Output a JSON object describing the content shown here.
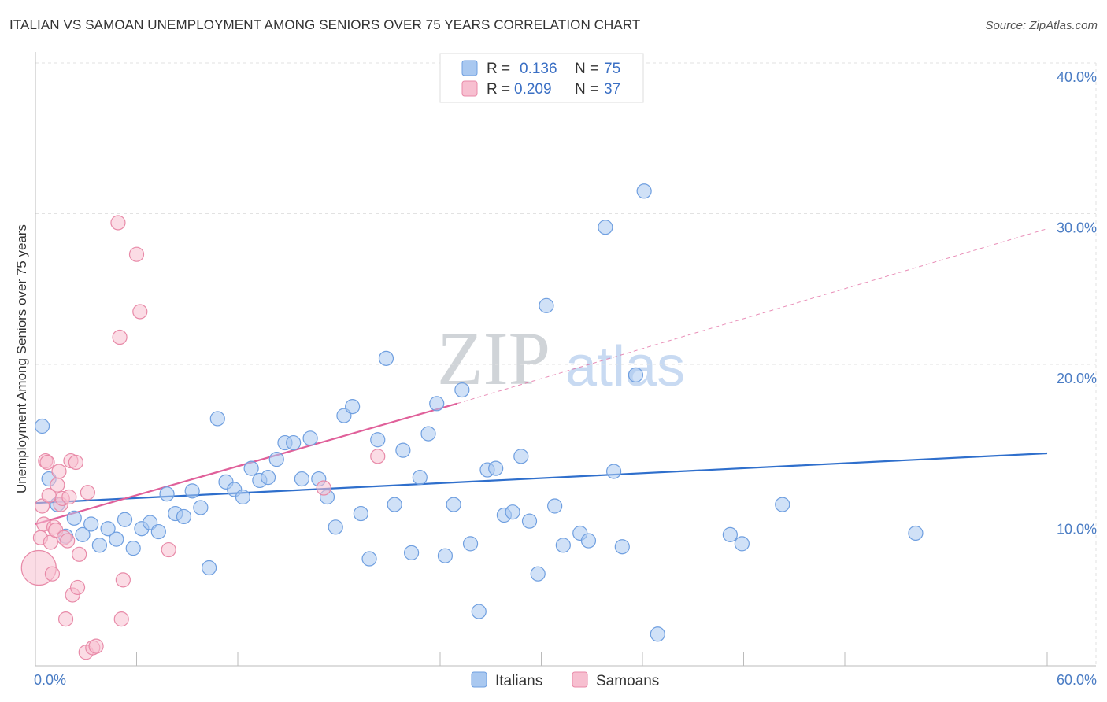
{
  "title": "ITALIAN VS SAMOAN UNEMPLOYMENT AMONG SENIORS OVER 75 YEARS CORRELATION CHART",
  "source": "Source: ZipAtlas.com",
  "watermark": {
    "zip": "ZIP",
    "atlas": "atlas"
  },
  "chart_data": {
    "type": "scatter",
    "xlabel": "",
    "ylabel": "Unemployment Among Seniors over 75 years",
    "xlim": [
      0,
      60
    ],
    "ylim": [
      0,
      40
    ],
    "x_tick_labels": {
      "left": "0.0%",
      "right": "60.0%"
    },
    "y_ticks": [
      {
        "value": 10,
        "label": "10.0%"
      },
      {
        "value": 20,
        "label": "20.0%"
      },
      {
        "value": 30,
        "label": "30.0%"
      },
      {
        "value": 40,
        "label": "40.0%"
      }
    ],
    "legend": [
      {
        "r_label": "R =",
        "r_value": "0.136",
        "n_label": "N =",
        "n_value": "75"
      },
      {
        "r_label": "R =",
        "r_value": "0.209",
        "n_label": "N =",
        "n_value": "37"
      }
    ],
    "series": [
      {
        "name": "Italians",
        "color": "#a9c8f0",
        "stroke": "#6f9fe0",
        "line_color": "#2f6fcc",
        "trend": {
          "x0": 0,
          "y0": 10.8,
          "x1": 60,
          "y1": 14.1
        },
        "points": [
          [
            0.4,
            15.9
          ],
          [
            0.8,
            12.4
          ],
          [
            1.3,
            10.7
          ],
          [
            1.8,
            8.6
          ],
          [
            2.3,
            9.8
          ],
          [
            2.8,
            8.7
          ],
          [
            3.3,
            9.4
          ],
          [
            3.8,
            8.0
          ],
          [
            4.3,
            9.1
          ],
          [
            4.8,
            8.4
          ],
          [
            5.3,
            9.7
          ],
          [
            5.8,
            7.8
          ],
          [
            6.3,
            9.1
          ],
          [
            6.8,
            9.5
          ],
          [
            7.3,
            8.9
          ],
          [
            7.8,
            11.4
          ],
          [
            8.3,
            10.1
          ],
          [
            8.8,
            9.9
          ],
          [
            9.3,
            11.6
          ],
          [
            9.8,
            10.5
          ],
          [
            10.3,
            6.5
          ],
          [
            10.8,
            16.4
          ],
          [
            11.3,
            12.2
          ],
          [
            11.8,
            11.7
          ],
          [
            12.3,
            11.2
          ],
          [
            12.8,
            13.1
          ],
          [
            13.3,
            12.3
          ],
          [
            13.8,
            12.5
          ],
          [
            14.3,
            13.7
          ],
          [
            14.8,
            14.8
          ],
          [
            15.3,
            14.8
          ],
          [
            15.8,
            12.4
          ],
          [
            16.3,
            15.1
          ],
          [
            16.8,
            12.4
          ],
          [
            17.3,
            11.2
          ],
          [
            17.8,
            9.2
          ],
          [
            18.3,
            16.6
          ],
          [
            18.8,
            17.2
          ],
          [
            19.3,
            10.1
          ],
          [
            19.8,
            7.1
          ],
          [
            20.3,
            15.0
          ],
          [
            20.8,
            20.4
          ],
          [
            21.3,
            10.7
          ],
          [
            21.8,
            14.3
          ],
          [
            22.3,
            7.5
          ],
          [
            22.8,
            12.5
          ],
          [
            23.3,
            15.4
          ],
          [
            23.8,
            17.4
          ],
          [
            24.3,
            7.3
          ],
          [
            24.8,
            10.7
          ],
          [
            25.3,
            18.3
          ],
          [
            25.8,
            8.1
          ],
          [
            26.3,
            3.6
          ],
          [
            26.8,
            13.0
          ],
          [
            27.3,
            13.1
          ],
          [
            27.8,
            10.0
          ],
          [
            28.3,
            10.2
          ],
          [
            28.8,
            13.9
          ],
          [
            29.3,
            9.6
          ],
          [
            29.8,
            6.1
          ],
          [
            30.3,
            23.9
          ],
          [
            30.8,
            10.6
          ],
          [
            31.3,
            8.0
          ],
          [
            32.3,
            8.8
          ],
          [
            32.8,
            8.3
          ],
          [
            33.8,
            29.1
          ],
          [
            34.3,
            12.9
          ],
          [
            34.8,
            7.9
          ],
          [
            35.6,
            19.3
          ],
          [
            36.1,
            31.5
          ],
          [
            36.9,
            2.1
          ],
          [
            41.2,
            8.7
          ],
          [
            41.9,
            8.1
          ],
          [
            44.3,
            10.7
          ],
          [
            52.2,
            8.8
          ]
        ]
      },
      {
        "name": "Samoans",
        "color": "#f7bfd0",
        "stroke": "#e88aa8",
        "line_color": "#e0609a",
        "trend": {
          "x0": 0,
          "y0": 9.4,
          "x1": 25,
          "y1": 17.4
        },
        "trend_ext": {
          "x0": 25,
          "y0": 17.4,
          "x1": 60,
          "y1": 29.0
        },
        "points": [
          [
            0.2,
            6.5
          ],
          [
            0.3,
            8.5
          ],
          [
            0.4,
            10.6
          ],
          [
            0.5,
            9.4
          ],
          [
            0.6,
            13.6
          ],
          [
            0.7,
            13.5
          ],
          [
            0.8,
            11.3
          ],
          [
            0.9,
            8.2
          ],
          [
            1.0,
            6.1
          ],
          [
            1.1,
            9.2
          ],
          [
            1.2,
            9.0
          ],
          [
            1.3,
            12.0
          ],
          [
            1.4,
            12.9
          ],
          [
            1.5,
            10.7
          ],
          [
            1.6,
            11.1
          ],
          [
            1.7,
            8.5
          ],
          [
            1.8,
            3.1
          ],
          [
            1.9,
            8.3
          ],
          [
            2.0,
            11.2
          ],
          [
            2.1,
            13.6
          ],
          [
            2.2,
            4.7
          ],
          [
            2.4,
            13.5
          ],
          [
            2.5,
            5.2
          ],
          [
            2.6,
            7.4
          ],
          [
            3.0,
            0.9
          ],
          [
            3.1,
            11.5
          ],
          [
            3.4,
            1.2
          ],
          [
            3.6,
            1.3
          ],
          [
            4.9,
            29.4
          ],
          [
            5.0,
            21.8
          ],
          [
            5.1,
            3.1
          ],
          [
            5.2,
            5.7
          ],
          [
            6.0,
            27.3
          ],
          [
            6.2,
            23.5
          ],
          [
            7.9,
            7.7
          ],
          [
            17.1,
            11.8
          ],
          [
            20.3,
            13.9
          ]
        ]
      }
    ]
  }
}
